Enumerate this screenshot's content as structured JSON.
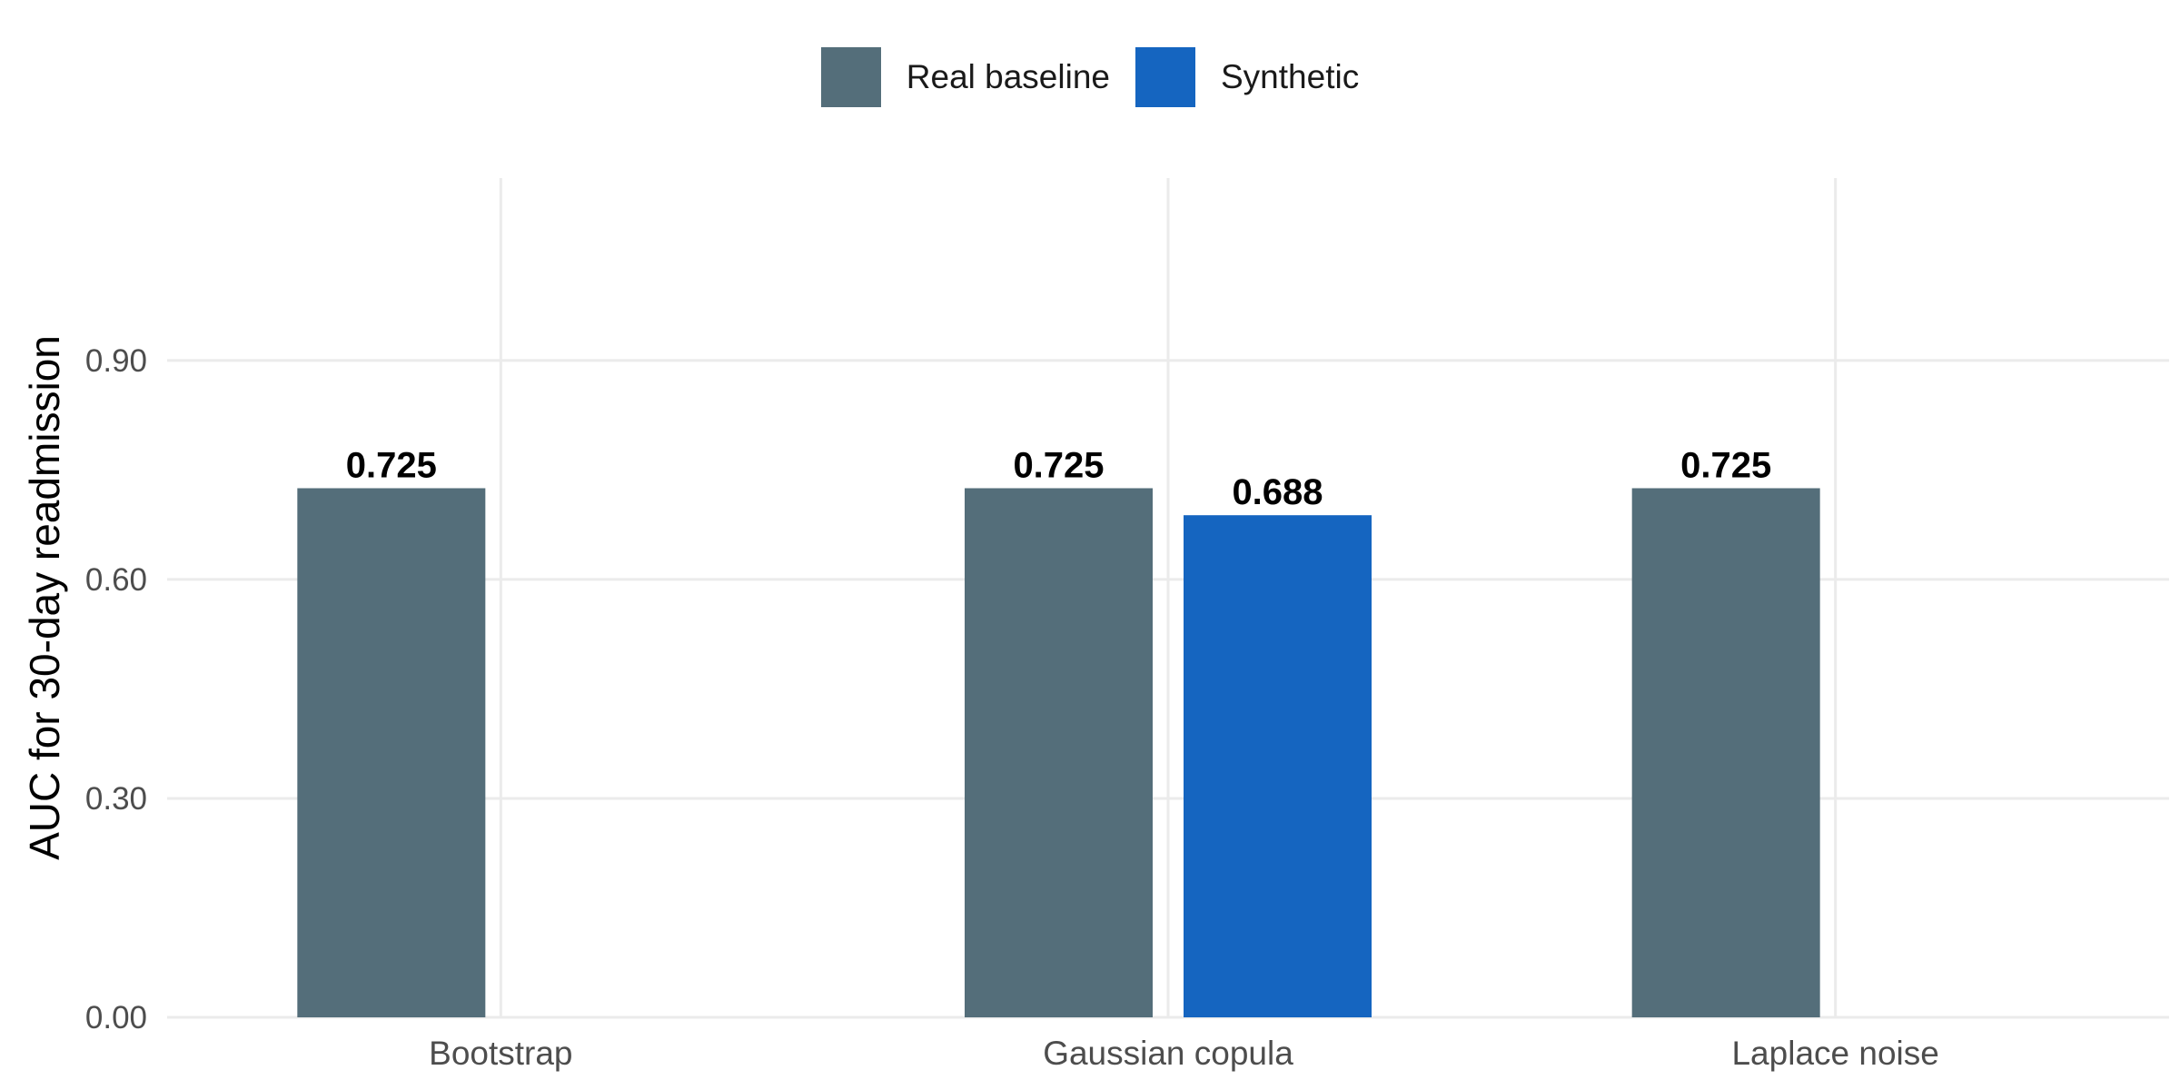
{
  "chart_data": {
    "type": "bar",
    "categories": [
      "Bootstrap",
      "Gaussian copula",
      "Laplace noise"
    ],
    "series": [
      {
        "name": "Real baseline",
        "color": "#546E7A",
        "values": [
          0.725,
          0.725,
          0.725
        ]
      },
      {
        "name": "Synthetic",
        "color": "#1565C0",
        "values": [
          null,
          0.688,
          null
        ]
      }
    ],
    "data_labels": [
      [
        "0.725",
        "0.725",
        "0.725"
      ],
      [
        null,
        "0.688",
        null
      ]
    ],
    "ylabel": "AUC for 30-day readmission",
    "xlabel": "",
    "ylim": [
      0,
      1.15
    ],
    "yticks": [
      0.0,
      0.3,
      0.6,
      0.9
    ],
    "ytick_labels": [
      "0.00",
      "0.30",
      "0.60",
      "0.90"
    ],
    "grid": true,
    "legend_position": "top"
  }
}
